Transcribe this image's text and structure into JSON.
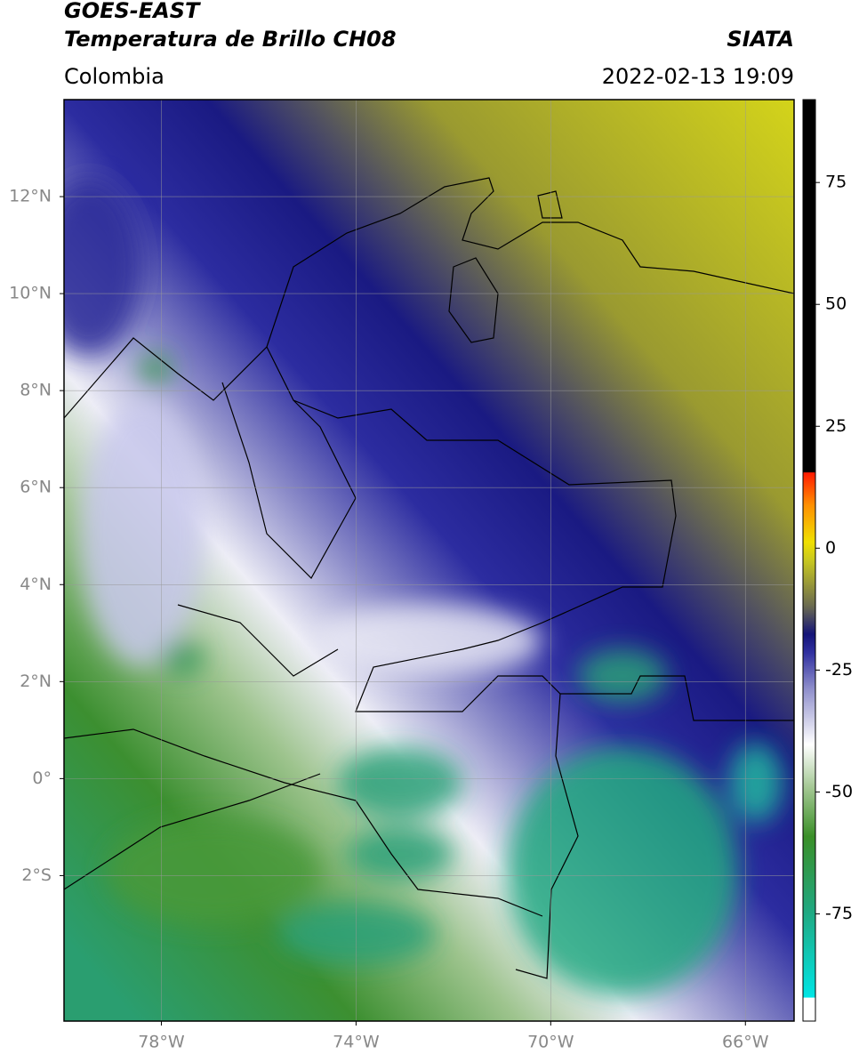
{
  "map": {
    "title": "GOES-EAST",
    "subtitle": "Temperatura de Brillo CH08",
    "source": "SIATA",
    "region": "Colombia",
    "datetime": "2022-02-13 19:09",
    "xlim": [
      -80,
      -65
    ],
    "ylim": [
      -5,
      14
    ],
    "xticks": [
      {
        "value": -78,
        "label": "78°W"
      },
      {
        "value": -74,
        "label": "74°W"
      },
      {
        "value": -70,
        "label": "70°W"
      },
      {
        "value": -66,
        "label": "66°W"
      }
    ],
    "yticks": [
      {
        "value": 12,
        "label": "12°N"
      },
      {
        "value": 10,
        "label": "10°N"
      },
      {
        "value": 8,
        "label": "8°N"
      },
      {
        "value": 6,
        "label": "6°N"
      },
      {
        "value": 4,
        "label": "4°N"
      },
      {
        "value": 2,
        "label": "2°N"
      },
      {
        "value": 0,
        "label": "0°"
      },
      {
        "value": -2,
        "label": "2°S"
      }
    ],
    "grid": true,
    "colorbar": {
      "lim": [
        -97,
        92
      ],
      "ticks": [
        75,
        50,
        25,
        0,
        -25,
        -50,
        -75
      ]
    }
  }
}
